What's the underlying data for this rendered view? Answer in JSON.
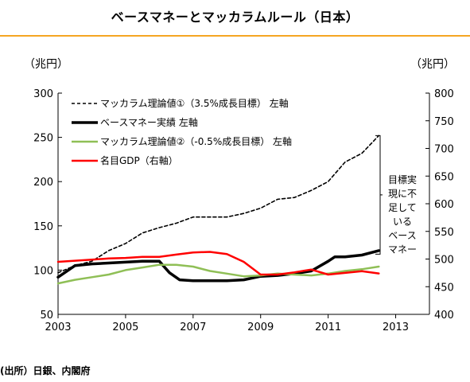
{
  "header": {
    "title": "ベースマネーとマッカラムルール（日本）",
    "left_unit": "（兆円）",
    "right_unit": "（兆円）",
    "source": "(出所）日銀、内閣府"
  },
  "colors": {
    "mccallum1": "#000000",
    "base_money": "#000000",
    "mccallum2": "#8fbf56",
    "gdp": "#ff0000",
    "title_rule": "#f5a623"
  },
  "chart_data": {
    "type": "line",
    "title": "ベースマネーとマッカラムルール（日本）",
    "xlim": [
      2003,
      2014
    ],
    "ylim_left": [
      50,
      300
    ],
    "ylim_right": [
      400,
      800
    ],
    "x_ticks": [
      "2003",
      "2005",
      "2007",
      "2009",
      "2011",
      "2013"
    ],
    "y_left_ticks": [
      "300",
      "250",
      "200",
      "150",
      "100",
      "50"
    ],
    "y_right_ticks": [
      "800",
      "750",
      "700",
      "650",
      "600",
      "550",
      "500",
      "450",
      "400"
    ],
    "grid": false,
    "legend_position": "top-left",
    "series": [
      {
        "name": "マッカラム理論値①（3.5%成長目標） 左軸",
        "axis": "left",
        "style": "dashed",
        "color": "#000000",
        "x": [
          2003.0,
          2003.5,
          2004.0,
          2004.5,
          2005.0,
          2005.5,
          2006.0,
          2006.5,
          2007.0,
          2007.5,
          2008.0,
          2008.5,
          2009.0,
          2009.5,
          2010.0,
          2010.5,
          2011.0,
          2011.5,
          2012.0,
          2012.5
        ],
        "values": [
          97,
          105,
          110,
          122,
          130,
          142,
          148,
          153,
          160,
          160,
          160,
          164,
          170,
          180,
          182,
          190,
          200,
          222,
          232,
          252
        ]
      },
      {
        "name": "ベースマネー実績 左軸",
        "axis": "left",
        "style": "solid",
        "color": "#000000",
        "x": [
          2003.0,
          2003.5,
          2004.0,
          2004.5,
          2005.0,
          2005.5,
          2006.0,
          2006.3,
          2006.6,
          2007.0,
          2007.5,
          2008.0,
          2008.5,
          2009.0,
          2009.5,
          2010.0,
          2010.5,
          2011.0,
          2011.2,
          2011.5,
          2012.0,
          2012.5
        ],
        "values": [
          92,
          105,
          107,
          108,
          109,
          110,
          110,
          97,
          89,
          88,
          88,
          88,
          89,
          93,
          94,
          96,
          99,
          110,
          115,
          115,
          117,
          122
        ]
      },
      {
        "name": "マッカラム理論値②（-0.5%成長目標） 左軸",
        "axis": "left",
        "style": "solid",
        "color": "#8fbf56",
        "x": [
          2003.0,
          2003.5,
          2004.0,
          2004.5,
          2005.0,
          2005.5,
          2006.0,
          2006.5,
          2007.0,
          2007.5,
          2008.0,
          2008.5,
          2009.0,
          2009.5,
          2010.0,
          2010.5,
          2011.0,
          2011.5,
          2012.0,
          2012.5
        ],
        "values": [
          85,
          89,
          92,
          95,
          100,
          103,
          106,
          106,
          104,
          99,
          96,
          93,
          94,
          96,
          95,
          94,
          96,
          99,
          101,
          104
        ]
      },
      {
        "name": "名目GDP（右軸）",
        "axis": "right",
        "style": "solid",
        "color": "#ff0000",
        "x": [
          2003.0,
          2003.5,
          2004.0,
          2004.5,
          2005.0,
          2005.5,
          2006.0,
          2006.5,
          2007.0,
          2007.5,
          2008.0,
          2008.5,
          2009.0,
          2009.5,
          2010.0,
          2010.5,
          2011.0,
          2011.5,
          2012.0,
          2012.5
        ],
        "values": [
          495,
          497,
          499,
          501,
          502,
          504,
          504,
          508,
          512,
          513,
          509,
          495,
          472,
          472,
          476,
          481,
          472,
          475,
          478,
          474
        ]
      }
    ],
    "annotation": {
      "lines": [
        "目標実",
        "現に不",
        "足して",
        "いる",
        "ベース",
        "マネー"
      ],
      "bracket_range_left": [
        118,
        252
      ]
    }
  }
}
